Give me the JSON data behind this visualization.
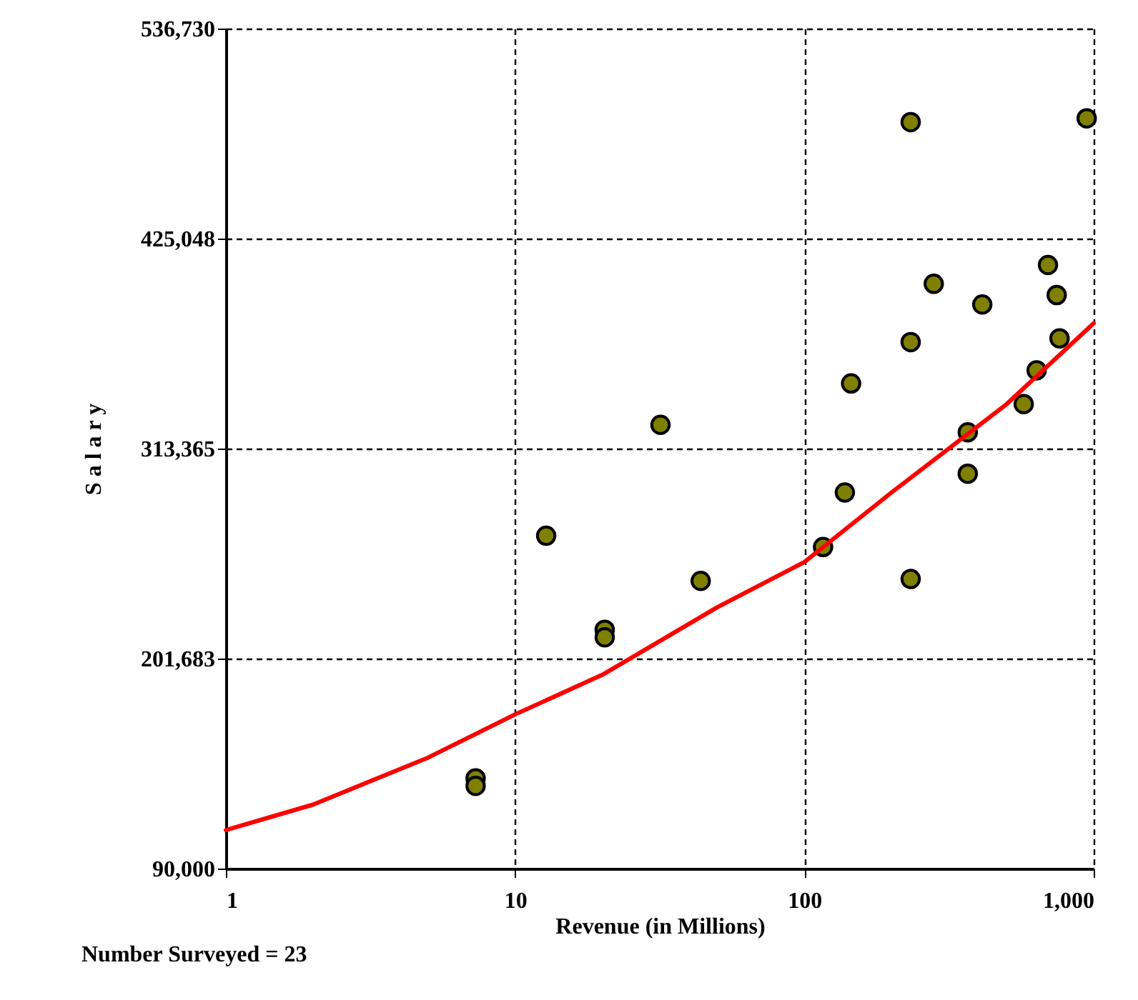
{
  "chart_data": {
    "type": "scatter",
    "xlabel": "Revenue (in Millions)",
    "ylabel": "S a l a r y",
    "annotations": [
      "Number Surveyed = 23"
    ],
    "log": "x",
    "grid": true,
    "marker": "circle",
    "xlim": [
      1,
      1000
    ],
    "xticks": [
      1,
      10,
      100,
      {
        "value": 1000,
        "label": "1,000"
      }
    ],
    "ylim": [
      90000,
      536730
    ],
    "yticks": [
      {
        "value": 90000,
        "label": "90,000"
      },
      {
        "value": 201683,
        "label": "201,683"
      },
      {
        "value": 313365,
        "label": "313,365"
      },
      {
        "value": 425048,
        "label": "425,048"
      },
      {
        "value": 536730,
        "label": "536,730"
      }
    ],
    "series": [
      {
        "color": "#808000",
        "x": [
          7.3,
          7.3,
          12.8,
          20.4,
          20.4,
          31.8,
          43.8,
          116,
          138,
          145,
          233,
          233,
          233,
          280,
          367,
          367,
          412,
          573,
          635,
          695,
          745,
          762,
          946
        ],
        "values": [
          138000,
          134000,
          267000,
          217000,
          213000,
          326000,
          243000,
          261000,
          290000,
          348000,
          487000,
          370000,
          244000,
          401000,
          322000,
          300000,
          390000,
          337000,
          355000,
          411000,
          395000,
          372000,
          489000
        ]
      },
      {
        "type": "line",
        "color": "#ff0000",
        "marker": "none",
        "x": [
          1,
          2,
          5,
          10,
          20,
          50,
          100,
          200,
          500,
          1000
        ],
        "values": [
          110500,
          124000,
          149000,
          172000,
          193000,
          229000,
          253000,
          290000,
          337000,
          380000
        ]
      }
    ]
  }
}
